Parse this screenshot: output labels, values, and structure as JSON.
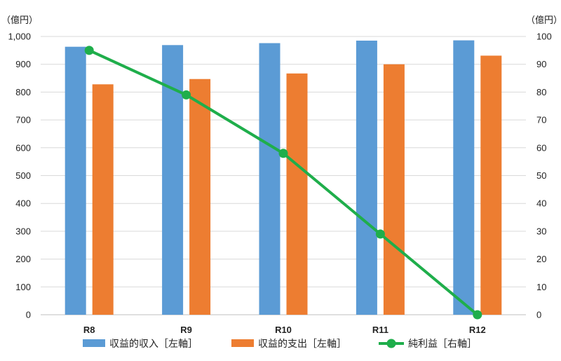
{
  "chart_data": {
    "type": "bar",
    "categories": [
      "R8",
      "R9",
      "R10",
      "R11",
      "R12"
    ],
    "series": [
      {
        "name": "収益的収入［左軸］",
        "type": "bar",
        "axis": "left",
        "color": "#5B9BD5",
        "values": [
          963,
          969,
          976,
          985,
          986
        ]
      },
      {
        "name": "収益的支出［左軸］",
        "type": "bar",
        "axis": "left",
        "color": "#ED7D31",
        "values": [
          828,
          847,
          867,
          900,
          931
        ]
      },
      {
        "name": "純利益［右軸］",
        "type": "line",
        "axis": "right",
        "color": "#1FAE4B",
        "values": [
          95,
          79,
          58,
          29,
          0
        ]
      }
    ],
    "left_axis": {
      "unit": "（億円）",
      "ylim": [
        0,
        1000
      ],
      "ticks": [
        "0",
        "100",
        "200",
        "300",
        "400",
        "500",
        "600",
        "700",
        "800",
        "900",
        "1,000"
      ]
    },
    "right_axis": {
      "unit": "（億円）",
      "ylim": [
        0,
        100
      ],
      "ticks": [
        "0",
        "10",
        "20",
        "30",
        "40",
        "50",
        "60",
        "70",
        "80",
        "90",
        "100"
      ]
    },
    "grid": true,
    "legend_position": "bottom"
  }
}
